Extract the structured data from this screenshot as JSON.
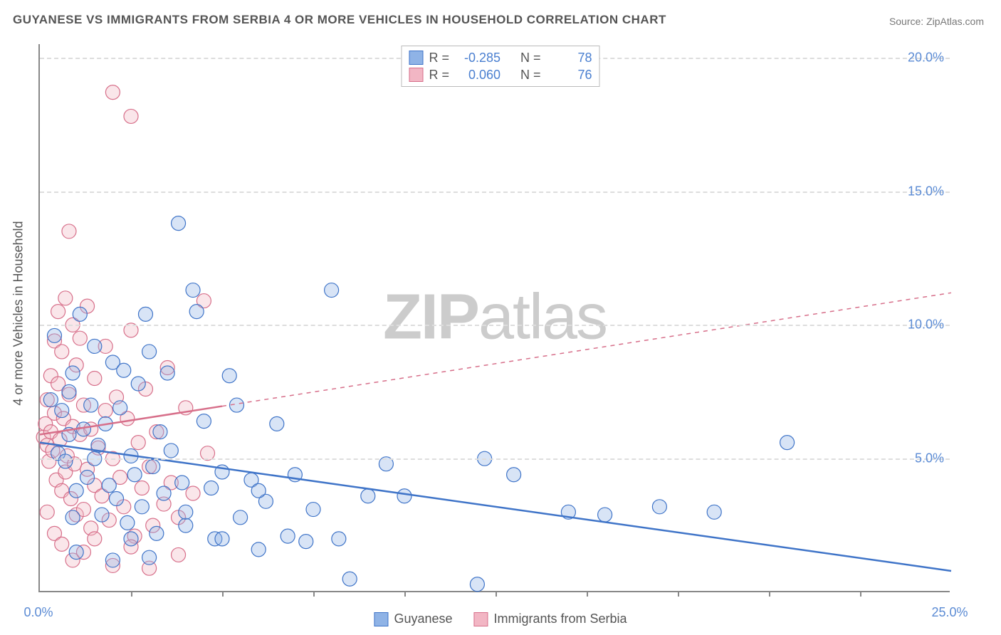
{
  "chart": {
    "type": "scatter",
    "title": "GUYANESE VS IMMIGRANTS FROM SERBIA 4 OR MORE VEHICLES IN HOUSEHOLD CORRELATION CHART",
    "source": "Source: ZipAtlas.com",
    "watermark": "ZIPatlas",
    "yaxis_label": "4 or more Vehicles in Household",
    "background_color": "#ffffff",
    "axis_color": "#888888",
    "grid_color": "#dddddd",
    "tick_label_color": "#5b8bd4",
    "title_color": "#555555",
    "title_fontsize": 17,
    "label_fontsize": 18,
    "tick_fontsize": 18,
    "xlim": [
      0,
      25
    ],
    "ylim": [
      0,
      20.5
    ],
    "yticks": [
      5,
      10,
      15,
      20
    ],
    "ytick_labels": [
      "5.0%",
      "10.0%",
      "15.0%",
      "20.0%"
    ],
    "xtick_minor_positions": [
      2.5,
      5,
      7.5,
      10,
      12.5,
      15,
      17.5,
      20,
      22.5
    ],
    "xlabel_0": "0.0%",
    "xlabel_max": "25.0%",
    "marker_radius": 10,
    "marker_stroke_width": 1.2,
    "marker_fill_opacity": 0.35,
    "series": [
      {
        "name": "Guyanese",
        "color_fill": "#8fb3e6",
        "color_stroke": "#3f74c8",
        "R": "-0.285",
        "N": "78",
        "regression": {
          "x1": 0,
          "y1": 5.6,
          "x2": 25,
          "y2": 0.8,
          "dash_split_x": 25
        },
        "points": [
          [
            0.3,
            7.2
          ],
          [
            0.4,
            9.6
          ],
          [
            0.5,
            5.2
          ],
          [
            0.6,
            6.8
          ],
          [
            0.7,
            4.9
          ],
          [
            0.8,
            5.9
          ],
          [
            0.8,
            7.5
          ],
          [
            0.9,
            8.2
          ],
          [
            1.0,
            3.8
          ],
          [
            1.1,
            10.4
          ],
          [
            1.2,
            6.1
          ],
          [
            1.3,
            4.3
          ],
          [
            1.4,
            7.0
          ],
          [
            1.5,
            9.2
          ],
          [
            1.6,
            5.5
          ],
          [
            1.7,
            2.9
          ],
          [
            1.8,
            6.3
          ],
          [
            1.9,
            4.0
          ],
          [
            2.0,
            8.6
          ],
          [
            2.1,
            3.5
          ],
          [
            2.2,
            6.9
          ],
          [
            2.3,
            8.3
          ],
          [
            2.4,
            2.6
          ],
          [
            2.5,
            5.1
          ],
          [
            2.6,
            4.4
          ],
          [
            2.7,
            7.8
          ],
          [
            2.8,
            3.2
          ],
          [
            2.9,
            10.4
          ],
          [
            3.0,
            9.0
          ],
          [
            3.1,
            4.7
          ],
          [
            3.2,
            2.2
          ],
          [
            3.3,
            6.0
          ],
          [
            3.4,
            3.7
          ],
          [
            3.5,
            8.2
          ],
          [
            3.6,
            5.3
          ],
          [
            3.8,
            13.8
          ],
          [
            3.9,
            4.1
          ],
          [
            4.0,
            2.5
          ],
          [
            4.2,
            11.3
          ],
          [
            4.3,
            10.5
          ],
          [
            4.5,
            6.4
          ],
          [
            4.7,
            3.9
          ],
          [
            4.8,
            2.0
          ],
          [
            5.0,
            4.5
          ],
          [
            5.2,
            8.1
          ],
          [
            5.4,
            7.0
          ],
          [
            5.5,
            2.8
          ],
          [
            5.8,
            4.2
          ],
          [
            6.0,
            1.6
          ],
          [
            6.2,
            3.4
          ],
          [
            6.5,
            6.3
          ],
          [
            6.8,
            2.1
          ],
          [
            7.0,
            4.4
          ],
          [
            7.3,
            1.9
          ],
          [
            7.5,
            3.1
          ],
          [
            8.0,
            11.3
          ],
          [
            8.2,
            2.0
          ],
          [
            8.5,
            0.5
          ],
          [
            9.0,
            3.6
          ],
          [
            9.5,
            4.8
          ],
          [
            10.0,
            3.6
          ],
          [
            12.0,
            0.3
          ],
          [
            12.2,
            5.0
          ],
          [
            13.0,
            4.4
          ],
          [
            14.5,
            3.0
          ],
          [
            15.5,
            2.9
          ],
          [
            17.0,
            3.2
          ],
          [
            18.5,
            3.0
          ],
          [
            20.5,
            5.6
          ],
          [
            5.0,
            2.0
          ],
          [
            2.0,
            1.2
          ],
          [
            1.0,
            1.5
          ],
          [
            2.5,
            2.0
          ],
          [
            3.0,
            1.3
          ],
          [
            4.0,
            3.0
          ],
          [
            6.0,
            3.8
          ],
          [
            1.5,
            5.0
          ],
          [
            0.9,
            2.8
          ]
        ]
      },
      {
        "name": "Immigrants from Serbia",
        "color_fill": "#f2b6c4",
        "color_stroke": "#d76f8a",
        "R": "0.060",
        "N": "76",
        "regression": {
          "x1": 0,
          "y1": 5.9,
          "x2": 25,
          "y2": 11.2,
          "dash_split_x": 5
        },
        "points": [
          [
            0.1,
            5.8
          ],
          [
            0.15,
            6.3
          ],
          [
            0.2,
            5.5
          ],
          [
            0.2,
            7.2
          ],
          [
            0.25,
            4.9
          ],
          [
            0.3,
            6.0
          ],
          [
            0.3,
            8.1
          ],
          [
            0.35,
            5.3
          ],
          [
            0.4,
            6.7
          ],
          [
            0.4,
            9.4
          ],
          [
            0.45,
            4.2
          ],
          [
            0.5,
            7.8
          ],
          [
            0.5,
            10.5
          ],
          [
            0.55,
            5.7
          ],
          [
            0.6,
            3.8
          ],
          [
            0.6,
            9.0
          ],
          [
            0.65,
            6.5
          ],
          [
            0.7,
            4.5
          ],
          [
            0.7,
            11.0
          ],
          [
            0.75,
            5.1
          ],
          [
            0.8,
            7.4
          ],
          [
            0.8,
            13.5
          ],
          [
            0.85,
            3.5
          ],
          [
            0.9,
            6.2
          ],
          [
            0.9,
            10.0
          ],
          [
            0.95,
            4.8
          ],
          [
            1.0,
            8.5
          ],
          [
            1.0,
            2.9
          ],
          [
            1.1,
            5.9
          ],
          [
            1.1,
            9.5
          ],
          [
            1.2,
            3.1
          ],
          [
            1.2,
            7.0
          ],
          [
            1.3,
            4.6
          ],
          [
            1.3,
            10.7
          ],
          [
            1.4,
            6.1
          ],
          [
            1.4,
            2.4
          ],
          [
            1.5,
            8.0
          ],
          [
            1.5,
            4.0
          ],
          [
            1.6,
            5.4
          ],
          [
            1.7,
            3.6
          ],
          [
            1.8,
            6.8
          ],
          [
            1.8,
            9.2
          ],
          [
            1.9,
            2.7
          ],
          [
            2.0,
            5.0
          ],
          [
            2.0,
            18.7
          ],
          [
            2.1,
            7.3
          ],
          [
            2.2,
            4.3
          ],
          [
            2.3,
            3.2
          ],
          [
            2.4,
            6.5
          ],
          [
            2.5,
            9.8
          ],
          [
            2.5,
            17.8
          ],
          [
            2.6,
            2.1
          ],
          [
            2.7,
            5.6
          ],
          [
            2.8,
            3.9
          ],
          [
            2.9,
            7.6
          ],
          [
            3.0,
            4.7
          ],
          [
            3.1,
            2.5
          ],
          [
            3.2,
            6.0
          ],
          [
            3.4,
            3.3
          ],
          [
            3.5,
            8.4
          ],
          [
            3.6,
            4.1
          ],
          [
            3.8,
            2.8
          ],
          [
            4.0,
            6.9
          ],
          [
            4.2,
            3.7
          ],
          [
            4.5,
            10.9
          ],
          [
            4.6,
            5.2
          ],
          [
            0.2,
            3.0
          ],
          [
            0.4,
            2.2
          ],
          [
            0.6,
            1.8
          ],
          [
            0.9,
            1.2
          ],
          [
            1.2,
            1.5
          ],
          [
            1.5,
            2.0
          ],
          [
            2.0,
            1.0
          ],
          [
            2.5,
            1.7
          ],
          [
            3.0,
            0.9
          ],
          [
            3.8,
            1.4
          ]
        ]
      }
    ],
    "legend_top_labels": {
      "R": "R =",
      "N": "N ="
    },
    "legend_bottom_labels": [
      "Guyanese",
      "Immigrants from Serbia"
    ]
  }
}
